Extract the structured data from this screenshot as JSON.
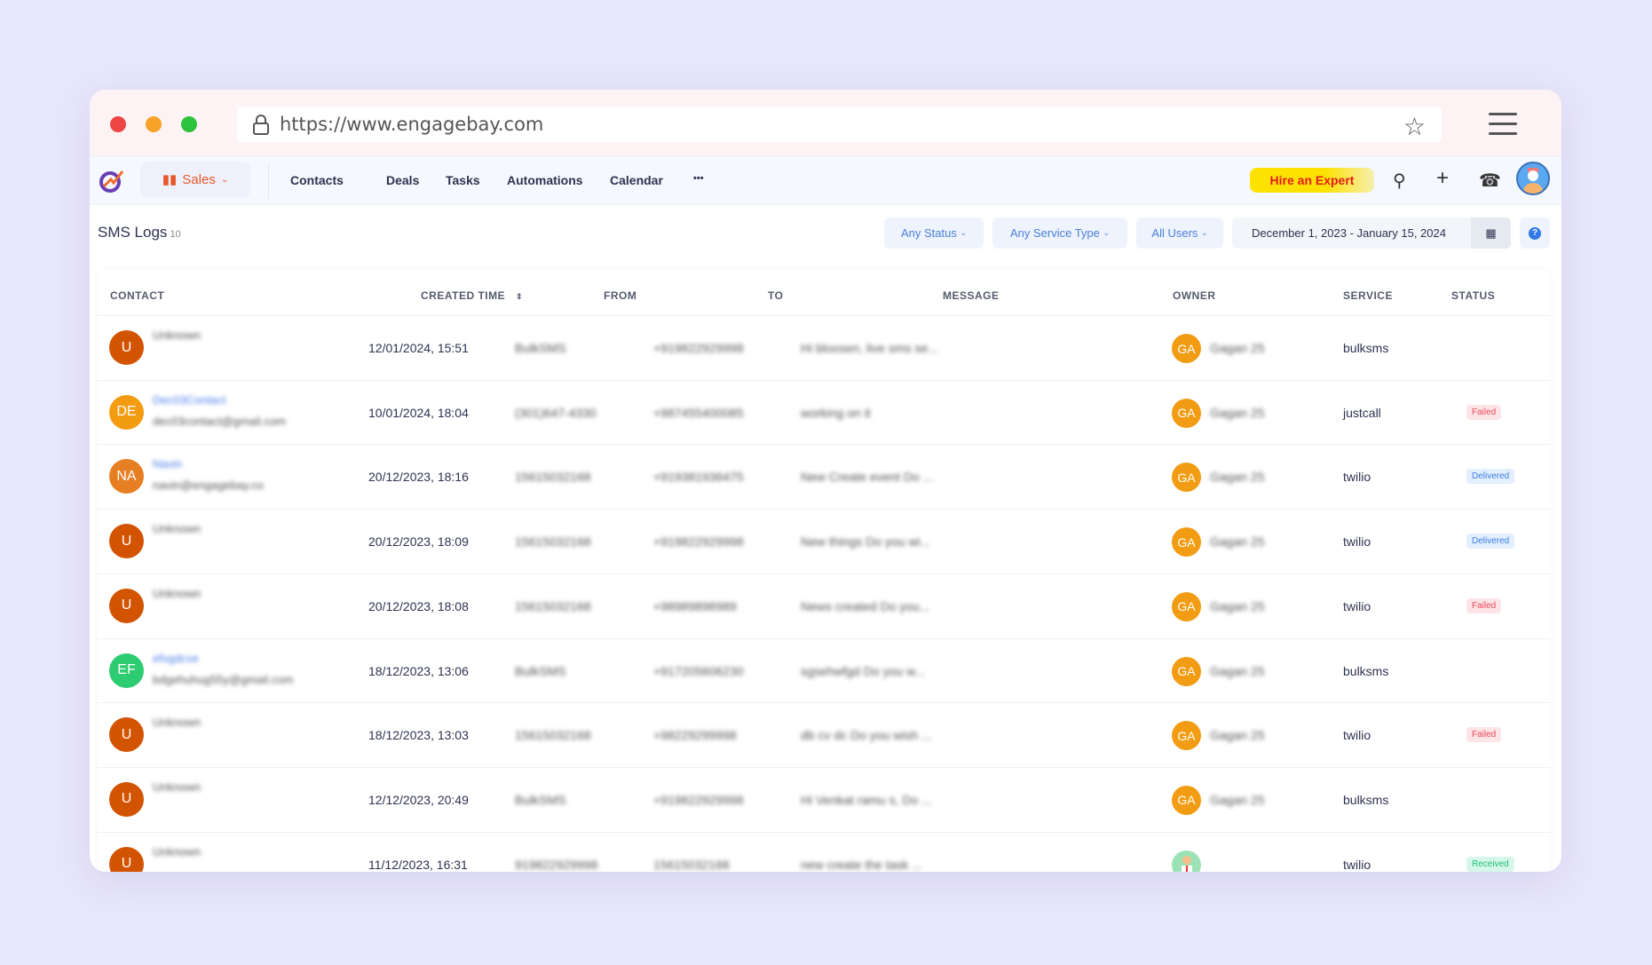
{
  "browser": {
    "url": "https://www.engagebay.com"
  },
  "nav": {
    "sales": "Sales",
    "items": [
      "Contacts",
      "Deals",
      "Tasks",
      "Automations",
      "Calendar"
    ],
    "more": "•••",
    "hire": "Hire an Expert"
  },
  "page": {
    "title": "SMS Logs",
    "count": "10"
  },
  "filters": {
    "status": "Any Status",
    "service": "Any Service Type",
    "users": "All Users",
    "date": "December 1, 2023 - January 15, 2024"
  },
  "table": {
    "headers": [
      "CONTACT",
      "CREATED TIME",
      "FROM",
      "TO",
      "MESSAGE",
      "OWNER",
      "SERVICE",
      "STATUS"
    ],
    "rows": [
      {
        "initials": "U",
        "color": "#d35400",
        "name": "Unknown",
        "email": "",
        "time": "12/01/2024, 15:51",
        "from": "BulkSMS",
        "to": "+919822929998",
        "message": "Hi bloosen, live sms se...",
        "owner_initials": "GA",
        "owner": "Gagan 25",
        "service": "bulksms",
        "status": ""
      },
      {
        "initials": "DE",
        "color": "#f39c12",
        "name": "Dec03Contact",
        "email": "dec03contact@gmail.com",
        "time": "10/01/2024, 18:04",
        "from": "(301)647-4330",
        "to": "+987455400085",
        "message": "working on it",
        "owner_initials": "GA",
        "owner": "Gagan 25",
        "service": "justcall",
        "status": "Failed"
      },
      {
        "initials": "NA",
        "color": "#e67e22",
        "name": "Navin",
        "email": "navin@engagebay.co",
        "time": "20/12/2023, 18:16",
        "from": "15615032168",
        "to": "+919381936475",
        "message": "New Create event Do ...",
        "owner_initials": "GA",
        "owner": "Gagan 25",
        "service": "twilio",
        "status": "Delivered"
      },
      {
        "initials": "U",
        "color": "#d35400",
        "name": "Unknown",
        "email": "",
        "time": "20/12/2023, 18:09",
        "from": "15615032168",
        "to": "+919822929998",
        "message": "New things Do you wi...",
        "owner_initials": "GA",
        "owner": "Gagan 25",
        "service": "twilio",
        "status": "Delivered"
      },
      {
        "initials": "U",
        "color": "#d35400",
        "name": "Unknown",
        "email": "",
        "time": "20/12/2023, 18:08",
        "from": "15615032168",
        "to": "+98989898989",
        "message": "News created Do you...",
        "owner_initials": "GA",
        "owner": "Gagan 25",
        "service": "twilio",
        "status": "Failed"
      },
      {
        "initials": "EF",
        "color": "#2ecc71",
        "name": "efvgdcve",
        "email": "bdgehuhug55y@gmail.com",
        "time": "18/12/2023, 13:06",
        "from": "BulkSMS",
        "to": "+917205606230",
        "message": "sgsehwfgd Do you w...",
        "owner_initials": "GA",
        "owner": "Gagan 25",
        "service": "bulksms",
        "status": ""
      },
      {
        "initials": "U",
        "color": "#d35400",
        "name": "Unknown",
        "email": "",
        "time": "18/12/2023, 13:03",
        "from": "15615032168",
        "to": "+98229299998",
        "message": "db cv dc Do you wish ...",
        "owner_initials": "GA",
        "owner": "Gagan 25",
        "service": "twilio",
        "status": "Failed"
      },
      {
        "initials": "U",
        "color": "#d35400",
        "name": "Unknown",
        "email": "",
        "time": "12/12/2023, 20:49",
        "from": "BulkSMS",
        "to": "+919822929998",
        "message": "Hi Venkat ramu s, Do ...",
        "owner_initials": "GA",
        "owner": "Gagan 25",
        "service": "bulksms",
        "status": ""
      },
      {
        "initials": "U",
        "color": "#d35400",
        "name": "Unknown",
        "email": "",
        "time": "11/12/2023, 16:31",
        "from": "919822929998",
        "to": "15615032168",
        "message": "new create the task ...",
        "owner_initials": "",
        "owner": "",
        "service": "twilio",
        "status": "Received"
      }
    ]
  },
  "status_colors": {
    "Failed": [
      "#fde4e6",
      "#e84b5a"
    ],
    "Delivered": [
      "#e3efff",
      "#3b7de0"
    ],
    "Received": [
      "#d7f7ea",
      "#1fbf7a"
    ]
  }
}
